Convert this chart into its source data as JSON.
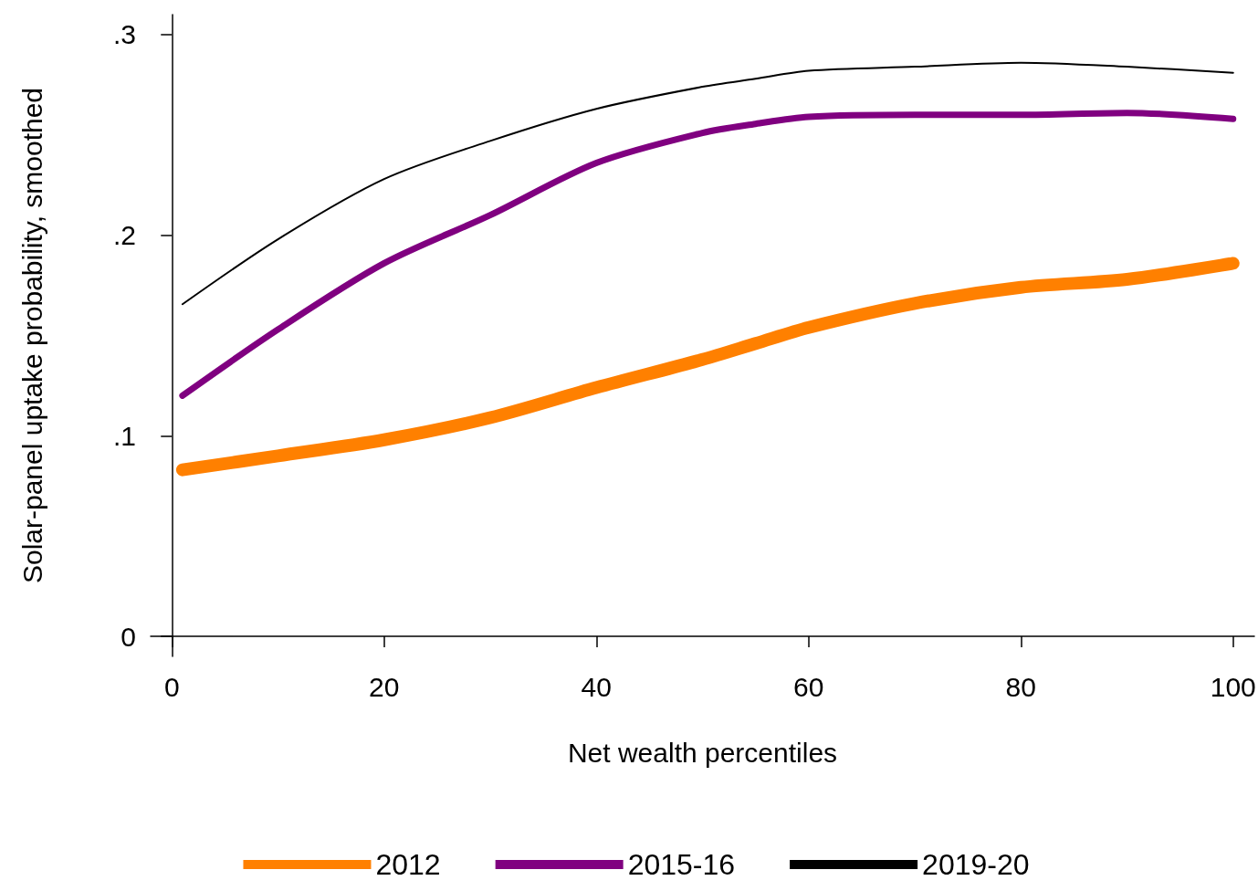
{
  "chart_data": {
    "type": "line",
    "xlabel": "Net wealth percentiles",
    "ylabel": "Solar-panel uptake probability, smoothed",
    "xlim": [
      -2,
      102
    ],
    "xticks": [
      0,
      20,
      40,
      60,
      80,
      100
    ],
    "ylim": [
      -0.01,
      0.31
    ],
    "yticks": [
      {
        "value": 0,
        "label": "0"
      },
      {
        "value": 0.1,
        "label": ".1"
      },
      {
        "value": 0.2,
        "label": ".2"
      },
      {
        "value": 0.3,
        "label": ".3"
      }
    ],
    "x": [
      1,
      10,
      20,
      30,
      40,
      50,
      55,
      60,
      70,
      80,
      90,
      100
    ],
    "series": [
      {
        "name": "2012",
        "color": "#ff8000",
        "values": [
          0.083,
          0.09,
          0.098,
          0.109,
          0.124,
          0.138,
          0.146,
          0.154,
          0.166,
          0.174,
          0.178,
          0.186
        ]
      },
      {
        "name": "2015-16",
        "color": "#800080",
        "values": [
          0.12,
          0.153,
          0.186,
          0.21,
          0.236,
          0.251,
          0.2555,
          0.259,
          0.26,
          0.26,
          0.261,
          0.258
        ]
      },
      {
        "name": "2019-20",
        "color": "#000000",
        "values": [
          0.1656,
          0.198,
          0.228,
          0.247,
          0.263,
          0.274,
          0.278,
          0.282,
          0.284,
          0.286,
          0.284,
          0.281
        ]
      }
    ],
    "grid": false,
    "legend": "bottom",
    "marker": "none",
    "line_style": "solid"
  }
}
